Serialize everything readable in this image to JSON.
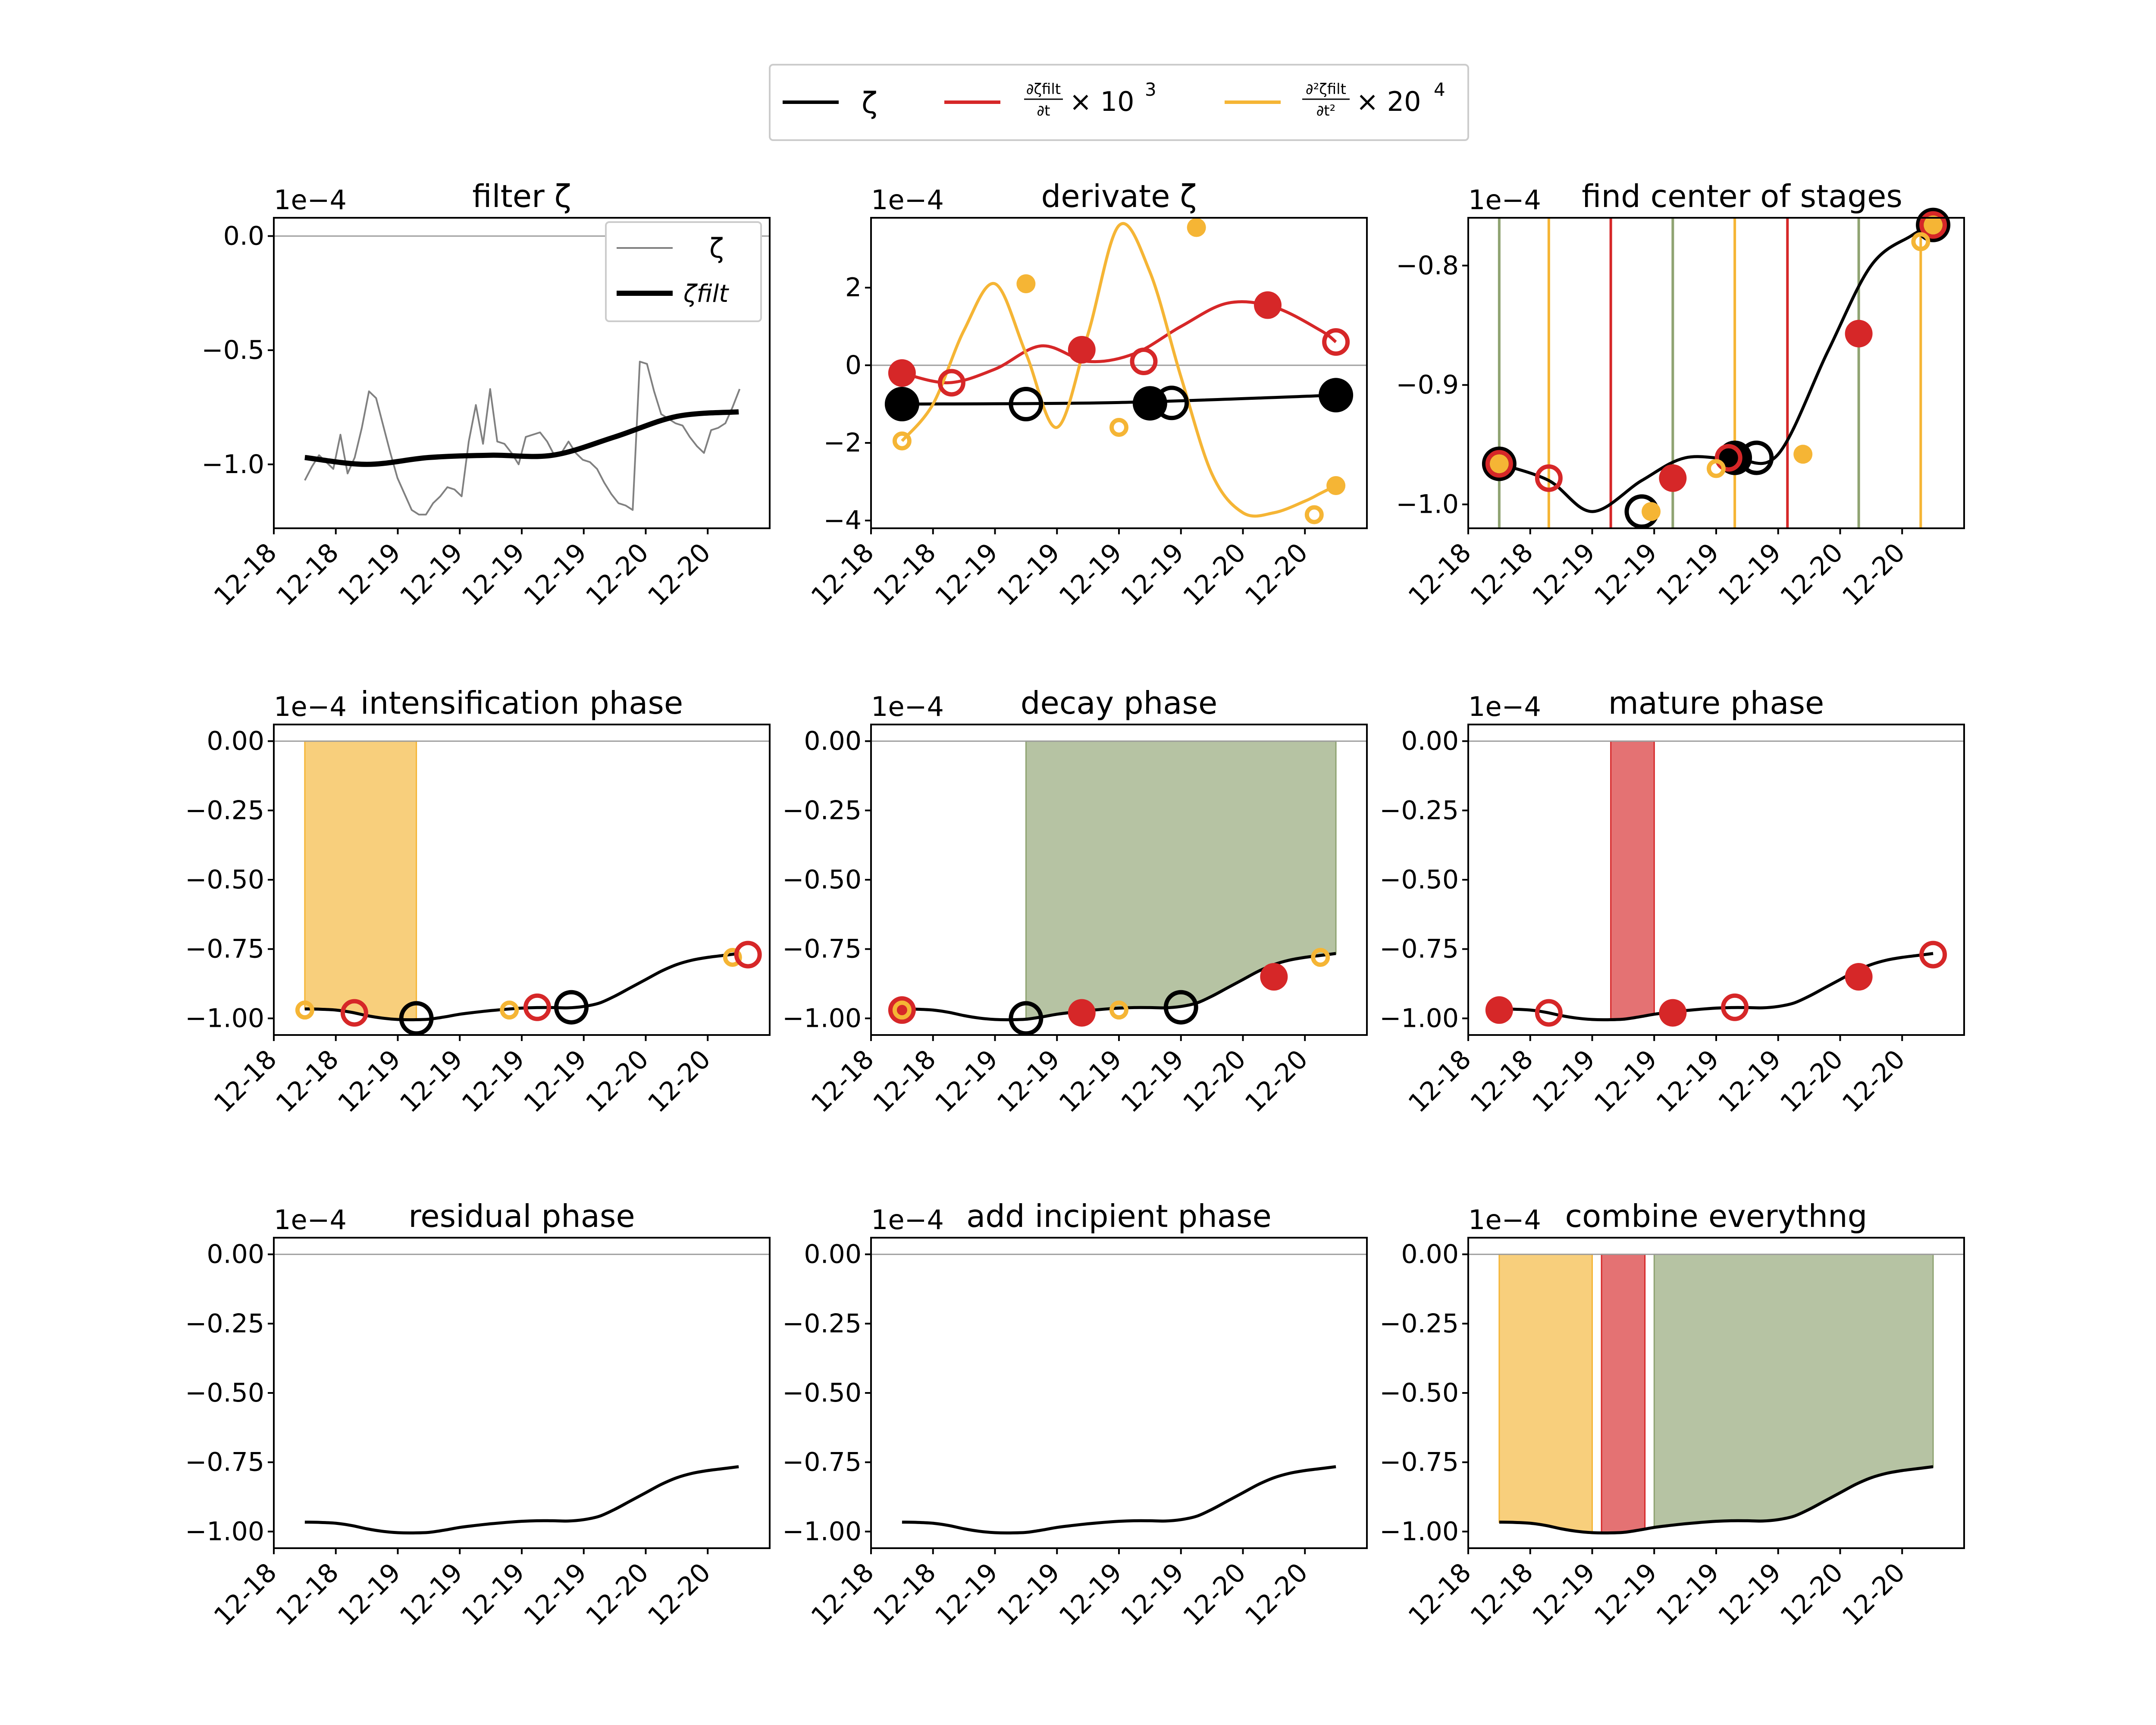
{
  "legend": {
    "placement": "top-center",
    "entries": [
      {
        "label": "ζ",
        "color": "#000000"
      },
      {
        "label": "∂ζ_filt/∂t × 10^3",
        "color": "#d62728"
      },
      {
        "label": "∂²ζ_filt/∂t² × 20^4",
        "color": "#f5b535"
      }
    ],
    "entry0": "ζ",
    "entry1_num": "∂ζfilt",
    "entry1_den": "∂t",
    "entry1_factor": "× 10",
    "entry1_exp": "3",
    "entry2_num": "∂²ζfilt",
    "entry2_den": "∂t²",
    "entry2_factor": "× 20",
    "entry2_exp": "4"
  },
  "colors": {
    "zeta": "#000000",
    "first_derivative": "#d62728",
    "second_derivative": "#f5b535",
    "intensification": "#f5b535",
    "mature": "#d62728",
    "decay": "#8fa372",
    "zero_line": "#9e9e9e"
  },
  "x_tick_labels": [
    "12-18",
    "12-18",
    "12-19",
    "12-19",
    "12-19",
    "12-19",
    "12-20",
    "12-20"
  ],
  "offset_label": "1e−4",
  "chart_data": [
    {
      "type": "line",
      "title": "filter ζ",
      "ylim": [
        -1.28,
        0.08
      ],
      "yticks": [
        0.0,
        -0.5,
        -1.0
      ],
      "ytick_labels": [
        "0.0",
        "−0.5",
        "−1.0"
      ],
      "legend": {
        "placement": "top-right",
        "entries": [
          "ζ",
          "ζfilt"
        ]
      },
      "series": [
        {
          "name": "ζ",
          "x": [
            0.0,
            0.23,
            0.46,
            0.69,
            0.92,
            1.15,
            1.38,
            1.61,
            1.84,
            2.07,
            2.3,
            2.53,
            2.76,
            2.99,
            3.22,
            3.45,
            3.68,
            3.91,
            4.14,
            4.37,
            4.6,
            4.83,
            5.06,
            5.29,
            5.52,
            5.75,
            5.98,
            6.21,
            6.44,
            6.67,
            6.9,
            7.13,
            7.36,
            7.59,
            7.82,
            8.05,
            8.28,
            8.51,
            8.74,
            8.97,
            9.2,
            9.43,
            9.66,
            9.89,
            10.12,
            10.35,
            10.58,
            10.81,
            11.04,
            11.27,
            11.5,
            11.73,
            11.96,
            12.19,
            12.42,
            12.65,
            12.88,
            13.11,
            13.34,
            13.57,
            13.8,
            14.03
          ],
          "values": [
            -1.07,
            -1.01,
            -0.96,
            -0.99,
            -1.02,
            -0.87,
            -1.04,
            -0.97,
            -0.84,
            -0.68,
            -0.71,
            -0.83,
            -0.95,
            -1.06,
            -1.13,
            -1.2,
            -1.22,
            -1.22,
            -1.17,
            -1.14,
            -1.1,
            -1.11,
            -1.14,
            -0.9,
            -0.74,
            -0.91,
            -0.67,
            -0.9,
            -0.91,
            -0.95,
            -1.0,
            -0.88,
            -0.87,
            -0.86,
            -0.9,
            -0.96,
            -0.95,
            -0.9,
            -0.95,
            -0.98,
            -0.99,
            -1.02,
            -1.08,
            -1.13,
            -1.17,
            -1.18,
            -1.2,
            -0.55,
            -0.56,
            -0.68,
            -0.78,
            -0.8,
            -0.82,
            -0.83,
            -0.88,
            -0.92,
            -0.95,
            -0.85,
            -0.84,
            -0.82,
            -0.75,
            -0.67
          ]
        },
        {
          "name": "ζfilt",
          "x": [
            0,
            2,
            4,
            6,
            8,
            10,
            12,
            14
          ],
          "values": [
            -0.97,
            -1.0,
            -0.97,
            -0.96,
            -0.96,
            -0.88,
            -0.79,
            -0.77
          ]
        }
      ]
    },
    {
      "type": "line",
      "title": "derivate ζ",
      "ylim": [
        -4.2,
        3.8
      ],
      "yticks": [
        2,
        0,
        -2,
        -4
      ],
      "ytick_labels": [
        "2",
        "0",
        "−2",
        "−4"
      ],
      "series": [
        {
          "name": "ζ",
          "x": [
            0,
            7,
            14
          ],
          "values": [
            -1.0,
            -0.96,
            -0.77
          ]
        },
        {
          "name": "∂ζ_filt/∂t × 10^3",
          "x": [
            0,
            1.5,
            3,
            4.5,
            6,
            7.5,
            9,
            10.5,
            12,
            13.5,
            14
          ],
          "values": [
            -0.2,
            -0.45,
            -0.1,
            0.5,
            0.1,
            0.3,
            1.0,
            1.6,
            1.5,
            0.9,
            0.6
          ]
        },
        {
          "name": "∂²ζ_filt/∂t² × 20^4",
          "x": [
            0,
            1,
            2,
            3,
            4,
            5,
            6,
            7,
            8,
            9,
            10,
            11,
            12,
            13,
            13.5,
            14
          ],
          "values": [
            -1.95,
            -1.0,
            0.9,
            2.1,
            0.3,
            -1.6,
            0.8,
            3.6,
            2.4,
            -0.3,
            -2.8,
            -3.8,
            -3.8,
            -3.5,
            -3.3,
            -3.1
          ]
        }
      ],
      "markers": [
        {
          "x": 0.0,
          "y": -1.0,
          "color": "#000000",
          "filled": true,
          "size": "large"
        },
        {
          "x": 4.0,
          "y": -1.0,
          "color": "#000000",
          "filled": false,
          "size": "large"
        },
        {
          "x": 8.0,
          "y": -0.98,
          "color": "#000000",
          "filled": true,
          "size": "large"
        },
        {
          "x": 8.7,
          "y": -0.97,
          "color": "#000000",
          "filled": false,
          "size": "large"
        },
        {
          "x": 14.0,
          "y": -0.77,
          "color": "#000000",
          "filled": true,
          "size": "large"
        },
        {
          "x": 0.0,
          "y": -0.2,
          "color": "#d62728",
          "filled": true,
          "size": "medium"
        },
        {
          "x": 1.6,
          "y": -0.45,
          "color": "#d62728",
          "filled": false,
          "size": "medium"
        },
        {
          "x": 5.8,
          "y": 0.4,
          "color": "#d62728",
          "filled": true,
          "size": "medium"
        },
        {
          "x": 7.8,
          "y": 0.1,
          "color": "#d62728",
          "filled": false,
          "size": "medium"
        },
        {
          "x": 11.8,
          "y": 1.55,
          "color": "#d62728",
          "filled": true,
          "size": "medium"
        },
        {
          "x": 14.0,
          "y": 0.6,
          "color": "#d62728",
          "filled": false,
          "size": "medium"
        },
        {
          "x": 0.0,
          "y": -1.95,
          "color": "#f5b535",
          "filled": false,
          "size": "small"
        },
        {
          "x": 4.0,
          "y": 2.1,
          "color": "#f5b535",
          "filled": true,
          "size": "small"
        },
        {
          "x": 7.0,
          "y": -1.6,
          "color": "#f5b535",
          "filled": false,
          "size": "small"
        },
        {
          "x": 9.5,
          "y": 3.55,
          "color": "#f5b535",
          "filled": true,
          "size": "small"
        },
        {
          "x": 13.3,
          "y": -3.85,
          "color": "#f5b535",
          "filled": false,
          "size": "small"
        },
        {
          "x": 14.0,
          "y": -3.1,
          "color": "#f5b535",
          "filled": true,
          "size": "small"
        }
      ]
    },
    {
      "type": "line",
      "title": "find center of stages",
      "ylim": [
        -1.02,
        -0.76
      ],
      "yticks": [
        -0.8,
        -0.9,
        -1.0
      ],
      "ytick_labels": [
        "−0.8",
        "−0.9",
        "−1.0"
      ],
      "series": [
        {
          "name": "ζ",
          "x": [
            0,
            1.6,
            3,
            4.6,
            6,
            7.6,
            9,
            10.6,
            12,
            13.3,
            14
          ],
          "values": [
            -0.966,
            -0.98,
            -1.006,
            -0.98,
            -0.961,
            -0.962,
            -0.958,
            -0.872,
            -0.8,
            -0.775,
            -0.766
          ]
        }
      ],
      "vertical_lines": [
        {
          "x": 0.0,
          "color": "#8fa372"
        },
        {
          "x": 1.6,
          "color": "#f5b535"
        },
        {
          "x": 3.6,
          "color": "#d62728"
        },
        {
          "x": 5.6,
          "color": "#8fa372"
        },
        {
          "x": 7.6,
          "color": "#f5b535"
        },
        {
          "x": 9.3,
          "color": "#d62728"
        },
        {
          "x": 11.6,
          "color": "#8fa372"
        },
        {
          "x": 13.6,
          "color": "#f5b535"
        }
      ],
      "markers": [
        {
          "x": 0.0,
          "y": -0.966,
          "color": "#000000",
          "filled": true,
          "size": "large"
        },
        {
          "x": 7.6,
          "y": -0.961,
          "color": "#000000",
          "filled": true,
          "size": "large"
        },
        {
          "x": 8.3,
          "y": -0.961,
          "color": "#000000",
          "filled": false,
          "size": "large"
        },
        {
          "x": 4.6,
          "y": -1.006,
          "color": "#000000",
          "filled": false,
          "size": "large"
        },
        {
          "x": 14.0,
          "y": -0.766,
          "color": "#000000",
          "filled": true,
          "size": "large"
        },
        {
          "x": 0.0,
          "y": -0.966,
          "color": "#d62728",
          "filled": false,
          "size": "medium"
        },
        {
          "x": 1.6,
          "y": -0.978,
          "color": "#d62728",
          "filled": false,
          "size": "medium"
        },
        {
          "x": 5.6,
          "y": -0.978,
          "color": "#d62728",
          "filled": true,
          "size": "medium"
        },
        {
          "x": 7.4,
          "y": -0.961,
          "color": "#d62728",
          "filled": false,
          "size": "medium"
        },
        {
          "x": 11.6,
          "y": -0.857,
          "color": "#d62728",
          "filled": true,
          "size": "medium"
        },
        {
          "x": 14.0,
          "y": -0.766,
          "color": "#d62728",
          "filled": false,
          "size": "medium"
        },
        {
          "x": 0.0,
          "y": -0.966,
          "color": "#f5b535",
          "filled": true,
          "size": "small"
        },
        {
          "x": 4.9,
          "y": -1.006,
          "color": "#f5b535",
          "filled": true,
          "size": "small"
        },
        {
          "x": 7.0,
          "y": -0.97,
          "color": "#f5b535",
          "filled": false,
          "size": "small"
        },
        {
          "x": 9.8,
          "y": -0.958,
          "color": "#f5b535",
          "filled": true,
          "size": "small"
        },
        {
          "x": 13.6,
          "y": -0.78,
          "color": "#f5b535",
          "filled": false,
          "size": "small"
        },
        {
          "x": 14.0,
          "y": -0.766,
          "color": "#f5b535",
          "filled": true,
          "size": "small"
        }
      ]
    },
    {
      "type": "area",
      "title": "intensification phase",
      "ylim": [
        -1.06,
        0.06
      ],
      "yticks": [
        0.0,
        -0.25,
        -0.5,
        -0.75,
        -1.0
      ],
      "ytick_labels": [
        "0.00",
        "−0.25",
        "−0.50",
        "−0.75",
        "−1.00"
      ],
      "shaded_regions": [
        {
          "x": [
            0.0,
            3.6
          ],
          "color": "#f5b535"
        }
      ],
      "markers": [
        {
          "x": 0.0,
          "y": -0.97,
          "color": "#f5b535",
          "filled": false,
          "size": "small"
        },
        {
          "x": 1.6,
          "y": -0.98,
          "color": "#d62728",
          "filled": false,
          "size": "medium"
        },
        {
          "x": 3.6,
          "y": -1.0,
          "color": "#000000",
          "filled": false,
          "size": "large"
        },
        {
          "x": 6.6,
          "y": -0.97,
          "color": "#f5b535",
          "filled": false,
          "size": "small"
        },
        {
          "x": 7.5,
          "y": -0.96,
          "color": "#d62728",
          "filled": false,
          "size": "medium"
        },
        {
          "x": 8.6,
          "y": -0.96,
          "color": "#000000",
          "filled": false,
          "size": "large"
        },
        {
          "x": 13.8,
          "y": -0.78,
          "color": "#f5b535",
          "filled": false,
          "size": "small"
        },
        {
          "x": 14.3,
          "y": -0.77,
          "color": "#d62728",
          "filled": false,
          "size": "medium"
        }
      ]
    },
    {
      "type": "area",
      "title": "decay phase",
      "ylim": [
        -1.06,
        0.06
      ],
      "yticks": [
        0.0,
        -0.25,
        -0.5,
        -0.75,
        -1.0
      ],
      "ytick_labels": [
        "0.00",
        "−0.25",
        "−0.50",
        "−0.75",
        "−1.00"
      ],
      "shaded_regions": [
        {
          "x": [
            4.0,
            14.0
          ],
          "color": "#8fa372"
        }
      ],
      "markers": [
        {
          "x": 0.0,
          "y": -0.97,
          "color": "#d62728",
          "filled": true,
          "size": "medium"
        },
        {
          "x": 0.0,
          "y": -0.97,
          "color": "#f5b535",
          "filled": false,
          "size": "small"
        },
        {
          "x": 4.0,
          "y": -1.0,
          "color": "#000000",
          "filled": false,
          "size": "large"
        },
        {
          "x": 5.8,
          "y": -0.98,
          "color": "#d62728",
          "filled": true,
          "size": "medium"
        },
        {
          "x": 7.0,
          "y": -0.97,
          "color": "#f5b535",
          "filled": false,
          "size": "small"
        },
        {
          "x": 9.0,
          "y": -0.96,
          "color": "#000000",
          "filled": false,
          "size": "large"
        },
        {
          "x": 12.0,
          "y": -0.85,
          "color": "#d62728",
          "filled": true,
          "size": "medium"
        },
        {
          "x": 13.5,
          "y": -0.78,
          "color": "#f5b535",
          "filled": false,
          "size": "small"
        }
      ]
    },
    {
      "type": "area",
      "title": "mature phase",
      "ylim": [
        -1.06,
        0.06
      ],
      "yticks": [
        0.0,
        -0.25,
        -0.5,
        -0.75,
        -1.0
      ],
      "ytick_labels": [
        "0.00",
        "−0.25",
        "−0.50",
        "−0.75",
        "−1.00"
      ],
      "shaded_regions": [
        {
          "x": [
            3.6,
            5.0
          ],
          "color": "#d62728"
        }
      ],
      "markers": [
        {
          "x": 0.0,
          "y": -0.97,
          "color": "#d62728",
          "filled": true,
          "size": "medium"
        },
        {
          "x": 1.6,
          "y": -0.98,
          "color": "#d62728",
          "filled": false,
          "size": "medium"
        },
        {
          "x": 5.6,
          "y": -0.98,
          "color": "#d62728",
          "filled": true,
          "size": "medium"
        },
        {
          "x": 7.6,
          "y": -0.96,
          "color": "#d62728",
          "filled": false,
          "size": "medium"
        },
        {
          "x": 11.6,
          "y": -0.85,
          "color": "#d62728",
          "filled": true,
          "size": "medium"
        },
        {
          "x": 14.0,
          "y": -0.77,
          "color": "#d62728",
          "filled": false,
          "size": "medium"
        }
      ]
    },
    {
      "type": "line",
      "title": "residual phase",
      "ylim": [
        -1.06,
        0.06
      ],
      "yticks": [
        0.0,
        -0.25,
        -0.5,
        -0.75,
        -1.0
      ],
      "ytick_labels": [
        "0.00",
        "−0.25",
        "−0.50",
        "−0.75",
        "−1.00"
      ],
      "shaded_regions": [],
      "markers": []
    },
    {
      "type": "line",
      "title": "add incipient phase",
      "ylim": [
        -1.06,
        0.06
      ],
      "yticks": [
        0.0,
        -0.25,
        -0.5,
        -0.75,
        -1.0
      ],
      "ytick_labels": [
        "0.00",
        "−0.25",
        "−0.50",
        "−0.75",
        "−1.00"
      ],
      "shaded_regions": [],
      "markers": []
    },
    {
      "type": "area",
      "title": "combine everythng",
      "ylim": [
        -1.06,
        0.06
      ],
      "yticks": [
        0.0,
        -0.25,
        -0.5,
        -0.75,
        -1.0
      ],
      "ytick_labels": [
        "0.00",
        "−0.25",
        "−0.50",
        "−0.75",
        "−1.00"
      ],
      "shaded_regions": [
        {
          "x": [
            0.0,
            3.0
          ],
          "color": "#f5b535"
        },
        {
          "x": [
            3.3,
            4.7
          ],
          "color": "#d62728"
        },
        {
          "x": [
            5.0,
            14.0
          ],
          "color": "#8fa372"
        }
      ],
      "markers": []
    }
  ],
  "zeta_filt_curve": {
    "x": [
      0,
      0.5,
      1,
      1.5,
      2,
      2.5,
      3,
      3.5,
      4,
      4.5,
      5,
      5.5,
      6,
      6.5,
      7,
      7.5,
      8,
      8.5,
      9,
      9.5,
      10,
      10.5,
      11,
      11.5,
      12,
      12.5,
      13,
      13.5,
      14
    ],
    "values": [
      -0.966,
      -0.967,
      -0.97,
      -0.978,
      -0.99,
      -0.999,
      -1.004,
      -1.005,
      -1.003,
      -0.995,
      -0.985,
      -0.978,
      -0.972,
      -0.967,
      -0.963,
      -0.961,
      -0.961,
      -0.962,
      -0.957,
      -0.945,
      -0.92,
      -0.89,
      -0.86,
      -0.83,
      -0.806,
      -0.79,
      -0.78,
      -0.773,
      -0.766
    ]
  }
}
